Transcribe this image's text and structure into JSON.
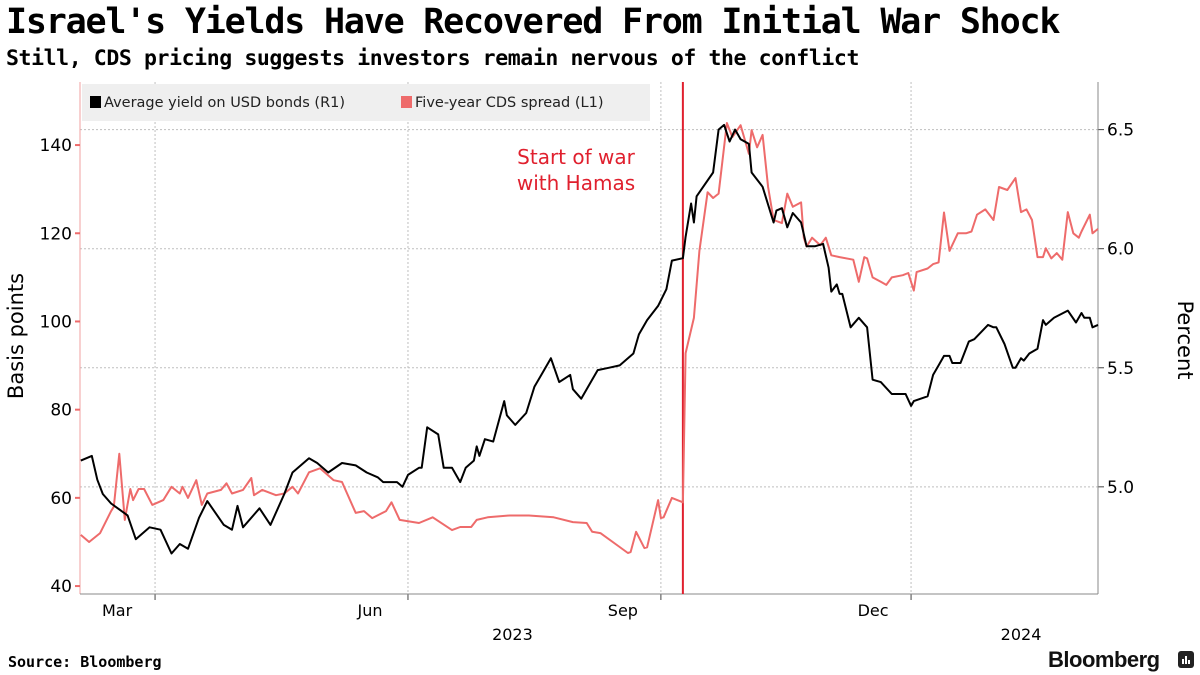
{
  "header": {
    "title": "Israel's Yields Have Recovered From Initial War Shock",
    "subtitle": "Still, CDS pricing suggests investors remain nervous of the conflict"
  },
  "footer": {
    "source": "Source: Bloomberg",
    "brand": "Bloomberg"
  },
  "colors": {
    "yield": "#000000",
    "cds": "#ee6b6b",
    "event": "#e0202e",
    "grid": "#bfbfbf",
    "legend_bg": "#efefef"
  },
  "chart_data": {
    "type": "line",
    "title": "Israel's Yields Have Recovered From Initial War Shock",
    "subtitle": "Still, CDS pricing suggests investors remain nervous of the conflict",
    "x_unit": "days since 2023-03-01",
    "xlim": [
      -27.3,
      343
    ],
    "x_ticks": [
      {
        "day": 0,
        "label": "Mar"
      },
      {
        "day": 92,
        "label": "Jun"
      },
      {
        "day": 184,
        "label": "Sep"
      },
      {
        "day": 275,
        "label": "Dec"
      }
    ],
    "year_labels": [
      {
        "day": 130,
        "label": "2023"
      },
      {
        "day": 315,
        "label": "2024"
      }
    ],
    "left_axis": {
      "label": "Basis points",
      "ylim": [
        38.2,
        154.3
      ],
      "ticks": [
        40,
        60,
        80,
        100,
        120,
        140
      ]
    },
    "right_axis": {
      "label": "Percent",
      "ylim": [
        4.55,
        6.7
      ],
      "ticks": [
        "5.0",
        "5.5",
        "6.0",
        "6.5"
      ]
    },
    "grid": true,
    "legend_position": "top-left",
    "annotation": {
      "day": 192,
      "lines": [
        "Start of war",
        "with Hamas"
      ]
    },
    "series": [
      {
        "name": "Average yield on USD bonds (R1)",
        "axis": "right",
        "points": [
          [
            -27,
            5.11
          ],
          [
            -23,
            5.13
          ],
          [
            -21,
            5.03
          ],
          [
            -19,
            4.97
          ],
          [
            -16,
            4.93
          ],
          [
            -10,
            4.88
          ],
          [
            -7,
            4.78
          ],
          [
            -2,
            4.83
          ],
          [
            2,
            4.82
          ],
          [
            6,
            4.72
          ],
          [
            9,
            4.76
          ],
          [
            12,
            4.74
          ],
          [
            16,
            4.87
          ],
          [
            19,
            4.94
          ],
          [
            25,
            4.84
          ],
          [
            28,
            4.82
          ],
          [
            30,
            4.92
          ],
          [
            32,
            4.83
          ],
          [
            38,
            4.91
          ],
          [
            42,
            4.84
          ],
          [
            47,
            4.97
          ],
          [
            50,
            5.06
          ],
          [
            56,
            5.12
          ],
          [
            59,
            5.1
          ],
          [
            63,
            5.06
          ],
          [
            68,
            5.1
          ],
          [
            73,
            5.09
          ],
          [
            77,
            5.06
          ],
          [
            81,
            5.04
          ],
          [
            83,
            5.02
          ],
          [
            88,
            5.02
          ],
          [
            90,
            5.0
          ],
          [
            92,
            5.05
          ],
          [
            96,
            5.08
          ],
          [
            97,
            5.08
          ],
          [
            99,
            5.25
          ],
          [
            103,
            5.22
          ],
          [
            105,
            5.08
          ],
          [
            108,
            5.08
          ],
          [
            111,
            5.02
          ],
          [
            113,
            5.08
          ],
          [
            116,
            5.11
          ],
          [
            117,
            5.17
          ],
          [
            118,
            5.13
          ],
          [
            120,
            5.2
          ],
          [
            123,
            5.19
          ],
          [
            127,
            5.36
          ],
          [
            128,
            5.3
          ],
          [
            131,
            5.26
          ],
          [
            135,
            5.31
          ],
          [
            138,
            5.42
          ],
          [
            141,
            5.48
          ],
          [
            144,
            5.54
          ],
          [
            147,
            5.44
          ],
          [
            151,
            5.47
          ],
          [
            152,
            5.41
          ],
          [
            155,
            5.37
          ],
          [
            161,
            5.49
          ],
          [
            165,
            5.5
          ],
          [
            169,
            5.51
          ],
          [
            174,
            5.56
          ],
          [
            176,
            5.64
          ],
          [
            179,
            5.7
          ],
          [
            183,
            5.76
          ],
          [
            186,
            5.83
          ],
          [
            188,
            5.95
          ],
          [
            192,
            5.96
          ],
          [
            193,
            6.05
          ],
          [
            195,
            6.19
          ],
          [
            196,
            6.11
          ],
          [
            197,
            6.22
          ],
          [
            203,
            6.32
          ],
          [
            205,
            6.5
          ],
          [
            207,
            6.52
          ],
          [
            209,
            6.45
          ],
          [
            211,
            6.5
          ],
          [
            213,
            6.46
          ],
          [
            216,
            6.44
          ],
          [
            217,
            6.32
          ],
          [
            221,
            6.26
          ],
          [
            225,
            6.11
          ],
          [
            226,
            6.16
          ],
          [
            228,
            6.17
          ],
          [
            230,
            6.09
          ],
          [
            232,
            6.15
          ],
          [
            235,
            6.11
          ],
          [
            237,
            6.01
          ],
          [
            240,
            6.01
          ],
          [
            243,
            6.02
          ],
          [
            245,
            5.92
          ],
          [
            246,
            5.82
          ],
          [
            248,
            5.85
          ],
          [
            249,
            5.81
          ],
          [
            250,
            5.81
          ],
          [
            253,
            5.67
          ],
          [
            256,
            5.71
          ],
          [
            259,
            5.67
          ],
          [
            261,
            5.45
          ],
          [
            264,
            5.44
          ],
          [
            268,
            5.39
          ],
          [
            273,
            5.39
          ],
          [
            275,
            5.34
          ],
          [
            276,
            5.36
          ],
          [
            281,
            5.38
          ],
          [
            283,
            5.47
          ],
          [
            285,
            5.51
          ],
          [
            287,
            5.55
          ],
          [
            289,
            5.55
          ],
          [
            290,
            5.52
          ],
          [
            293,
            5.52
          ],
          [
            296,
            5.61
          ],
          [
            298,
            5.62
          ],
          [
            303,
            5.68
          ],
          [
            305,
            5.67
          ],
          [
            306,
            5.67
          ],
          [
            309,
            5.6
          ],
          [
            312,
            5.5
          ],
          [
            313,
            5.5
          ],
          [
            315,
            5.54
          ],
          [
            316,
            5.53
          ],
          [
            318,
            5.56
          ],
          [
            321,
            5.58
          ],
          [
            323,
            5.7
          ],
          [
            324,
            5.68
          ],
          [
            327,
            5.71
          ],
          [
            332,
            5.74
          ],
          [
            335,
            5.69
          ],
          [
            337,
            5.73
          ],
          [
            338,
            5.71
          ],
          [
            340,
            5.71
          ],
          [
            341,
            5.67
          ],
          [
            343,
            5.68
          ]
        ]
      },
      {
        "name": "Five-year CDS spread (L1)",
        "axis": "left",
        "points": [
          [
            -27,
            51.6
          ],
          [
            -24,
            50
          ],
          [
            -20,
            52
          ],
          [
            -16,
            57
          ],
          [
            -15,
            58
          ],
          [
            -13,
            70
          ],
          [
            -11,
            55
          ],
          [
            -9,
            62
          ],
          [
            -8,
            59.5
          ],
          [
            -6,
            62
          ],
          [
            -4,
            62
          ],
          [
            -1,
            58.4
          ],
          [
            3,
            59.5
          ],
          [
            6,
            62.5
          ],
          [
            9,
            61
          ],
          [
            10,
            62.5
          ],
          [
            12,
            60
          ],
          [
            15,
            64
          ],
          [
            17,
            58.4
          ],
          [
            19,
            61
          ],
          [
            24,
            61.8
          ],
          [
            26,
            63.3
          ],
          [
            28,
            61
          ],
          [
            32,
            61.8
          ],
          [
            35,
            64.5
          ],
          [
            36,
            60.6
          ],
          [
            39,
            61.8
          ],
          [
            44,
            60.6
          ],
          [
            47,
            61
          ],
          [
            50,
            62.5
          ],
          [
            52,
            61
          ],
          [
            56,
            65.8
          ],
          [
            60,
            66.7
          ],
          [
            65,
            64
          ],
          [
            68,
            63.6
          ],
          [
            73,
            56.6
          ],
          [
            76,
            57
          ],
          [
            79,
            55.4
          ],
          [
            84,
            57
          ],
          [
            86,
            59
          ],
          [
            89,
            55
          ],
          [
            94,
            54.5
          ],
          [
            96,
            54.3
          ],
          [
            101,
            55.6
          ],
          [
            108,
            52.7
          ],
          [
            111,
            53.4
          ],
          [
            115,
            53.4
          ],
          [
            117,
            55
          ],
          [
            121,
            55.6
          ],
          [
            129,
            56
          ],
          [
            136,
            56
          ],
          [
            145,
            55.6
          ],
          [
            152,
            54.5
          ],
          [
            157,
            54.3
          ],
          [
            159,
            52.3
          ],
          [
            162,
            52
          ],
          [
            168,
            49.3
          ],
          [
            172,
            47.5
          ],
          [
            173,
            47.7
          ],
          [
            175,
            52.3
          ],
          [
            178,
            48.6
          ],
          [
            179,
            48.8
          ],
          [
            183,
            59.5
          ],
          [
            184,
            55.4
          ],
          [
            185,
            55.6
          ],
          [
            188,
            60
          ],
          [
            192,
            59
          ],
          [
            193,
            92.8
          ],
          [
            196,
            100.8
          ],
          [
            198,
            116
          ],
          [
            201,
            129.3
          ],
          [
            203,
            128
          ],
          [
            205,
            129
          ],
          [
            208,
            145
          ],
          [
            210,
            141.8
          ],
          [
            213,
            144.5
          ],
          [
            216,
            138
          ],
          [
            217,
            143.4
          ],
          [
            219,
            139.5
          ],
          [
            221,
            142.3
          ],
          [
            223,
            130.5
          ],
          [
            225,
            123
          ],
          [
            228,
            122.3
          ],
          [
            230,
            129
          ],
          [
            232,
            126
          ],
          [
            235,
            127
          ],
          [
            236,
            119
          ],
          [
            237,
            117
          ],
          [
            239,
            119
          ],
          [
            242,
            117.3
          ],
          [
            244,
            119
          ],
          [
            246,
            115
          ],
          [
            249,
            114.6
          ],
          [
            254,
            114
          ],
          [
            256,
            109
          ],
          [
            258,
            114.6
          ],
          [
            259,
            114.3
          ],
          [
            261,
            110
          ],
          [
            264,
            109
          ],
          [
            266,
            108.3
          ],
          [
            268,
            110
          ],
          [
            272,
            110.5
          ],
          [
            274,
            111
          ],
          [
            276,
            107
          ],
          [
            277,
            111.2
          ],
          [
            281,
            112
          ],
          [
            283,
            113
          ],
          [
            285,
            113.4
          ],
          [
            287,
            124.7
          ],
          [
            289,
            116
          ],
          [
            292,
            120
          ],
          [
            295,
            120
          ],
          [
            297,
            120.4
          ],
          [
            299,
            124.2
          ],
          [
            302,
            125.4
          ],
          [
            305,
            123
          ],
          [
            307,
            130.5
          ],
          [
            310,
            129.8
          ],
          [
            313,
            132.5
          ],
          [
            315,
            124.8
          ],
          [
            317,
            125.4
          ],
          [
            319,
            123
          ],
          [
            321,
            114.6
          ],
          [
            323,
            114.6
          ],
          [
            324,
            116.6
          ],
          [
            326,
            114.3
          ],
          [
            328,
            115.5
          ],
          [
            330,
            114
          ],
          [
            332,
            124.8
          ],
          [
            334,
            120
          ],
          [
            336,
            119
          ],
          [
            337,
            120.4
          ],
          [
            340,
            124.2
          ],
          [
            341,
            120
          ],
          [
            343,
            121
          ]
        ]
      }
    ]
  }
}
